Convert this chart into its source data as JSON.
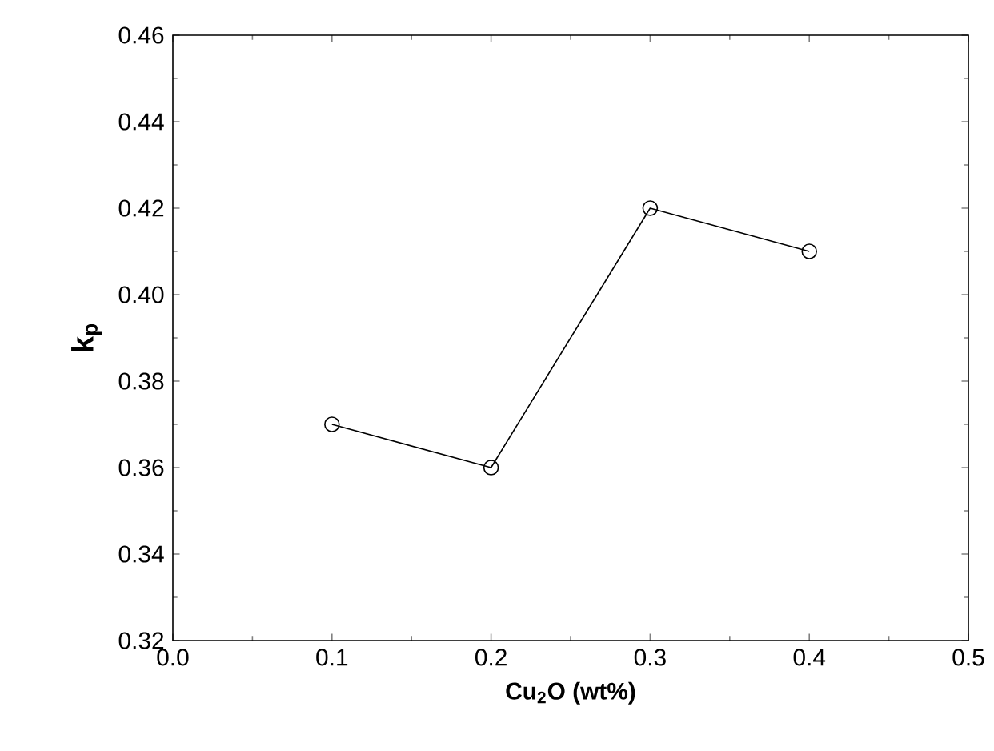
{
  "chart_data": {
    "type": "line",
    "xlabel": "Cu$_{2}$O (wt%)",
    "ylabel": "k$_{p}$",
    "x": [
      0.1,
      0.2,
      0.3,
      0.4
    ],
    "series": [
      {
        "color": "#000000",
        "values": [
          0.37,
          0.36,
          0.42,
          0.41
        ]
      }
    ],
    "xlim": [
      0,
      0.5
    ],
    "ylim": [
      0.32,
      0.46
    ],
    "xticks": [
      {
        "value": 0,
        "label": "0.0"
      },
      0.1,
      0.2,
      0.3,
      0.4,
      0.5
    ],
    "yticks": [
      0.32,
      0.34,
      0.36,
      0.38,
      {
        "value": 0.4,
        "label": "0.40"
      },
      0.42,
      0.44,
      0.46
    ],
    "marker": "circle",
    "line_style": "solid"
  }
}
